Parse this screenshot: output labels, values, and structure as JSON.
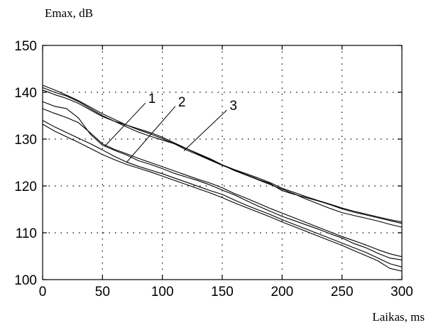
{
  "chart_data": {
    "type": "line",
    "title": "",
    "ylabel": "Emax, dB",
    "xlabel": "Laikas, ms",
    "xlim": [
      0,
      300
    ],
    "ylim": [
      100,
      150
    ],
    "x_ticks": [
      0,
      50,
      100,
      150,
      200,
      250,
      300
    ],
    "y_ticks": [
      100,
      110,
      120,
      130,
      140,
      150
    ],
    "grid": true,
    "line_color": "#000000",
    "x": [
      0,
      10,
      20,
      30,
      40,
      50,
      60,
      70,
      80,
      90,
      100,
      110,
      120,
      130,
      140,
      150,
      160,
      170,
      180,
      190,
      200,
      210,
      220,
      230,
      240,
      250,
      260,
      270,
      280,
      290,
      300
    ],
    "series": [
      {
        "values": [
          141,
          140,
          139.2,
          138,
          136.5,
          135,
          133.8,
          132.6,
          131.5,
          130.6,
          129.8,
          129,
          127.7,
          126.6,
          125.5,
          124.4,
          123.4,
          122.4,
          121.4,
          120.5,
          119,
          118.2,
          117.5,
          116.8,
          116,
          115.1,
          114.4,
          113.8,
          113.2,
          112.6,
          112
        ]
      },
      {
        "values": [
          140.5,
          139.5,
          138.7,
          137.6,
          136.2,
          134.8,
          133.8,
          133,
          132.2,
          131.4,
          130.4,
          129.2,
          128,
          126.8,
          125.6,
          124.5,
          123.5,
          122.6,
          121.7,
          120.7,
          119.5,
          118.6,
          117.7,
          116.9,
          116.1,
          115.3,
          114.6,
          114,
          113.4,
          112.8,
          112.3
        ]
      },
      {
        "values": [
          141.5,
          140.5,
          139.4,
          138.2,
          136.8,
          135.4,
          134.2,
          133,
          132,
          131.1,
          130.1,
          129,
          128,
          126.9,
          125.8,
          124.5,
          123.3,
          122.3,
          121.3,
          120.3,
          119.3,
          118.3,
          117.2,
          116.2,
          115.2,
          114.3,
          113.7,
          113.1,
          112.5,
          111.8,
          111.2
        ]
      },
      {
        "values": [
          138,
          137,
          136.5,
          134.5,
          131,
          128.7,
          127.6,
          126.6,
          125.4,
          124.6,
          123.7,
          122.7,
          121.9,
          121.1,
          120.2,
          119.1,
          118.1,
          116.9,
          115.7,
          114.6,
          113.5,
          112.6,
          111.7,
          110.8,
          109.8,
          108.9,
          107.7,
          106.8,
          105.6,
          104.6,
          104.2
        ]
      },
      {
        "values": [
          136.5,
          135.5,
          134.6,
          133.5,
          131.3,
          129,
          127.8,
          126.9,
          125.9,
          125,
          124.1,
          123.2,
          122.3,
          121.4,
          120.6,
          119.6,
          118.4,
          117.4,
          116.3,
          115.2,
          114.2,
          113.2,
          112.2,
          111.2,
          110.2,
          109.2,
          108.3,
          107.4,
          106.4,
          105.5,
          104.9
        ]
      },
      {
        "values": [
          134,
          132.6,
          131.4,
          130.2,
          129,
          127.7,
          126.3,
          125.1,
          124.2,
          123.4,
          122.6,
          121.7,
          120.8,
          119.9,
          119,
          118.2,
          117,
          115.9,
          114.9,
          113.9,
          112.8,
          111.8,
          110.8,
          109.8,
          108.8,
          107.8,
          106.8,
          105.8,
          104.6,
          103.4,
          102.7
        ]
      },
      {
        "values": [
          133.2,
          131.7,
          130.5,
          129.3,
          128,
          126.7,
          125.6,
          124.6,
          123.8,
          123,
          122.1,
          121.2,
          120.3,
          119.4,
          118.5,
          117.5,
          116.4,
          115.4,
          114.4,
          113.4,
          112.3,
          111.3,
          110.3,
          109.3,
          108.3,
          107.3,
          106.2,
          105.1,
          104,
          102.4,
          101.8
        ]
      }
    ],
    "annotations": [
      {
        "label": "1",
        "x": 87,
        "y": 138,
        "target_x": 52,
        "target_y": 128.5
      },
      {
        "label": "2",
        "x": 112,
        "y": 137.3,
        "target_x": 70,
        "target_y": 125
      },
      {
        "label": "3",
        "x": 155,
        "y": 136.5,
        "target_x": 118,
        "target_y": 127.5
      }
    ]
  }
}
